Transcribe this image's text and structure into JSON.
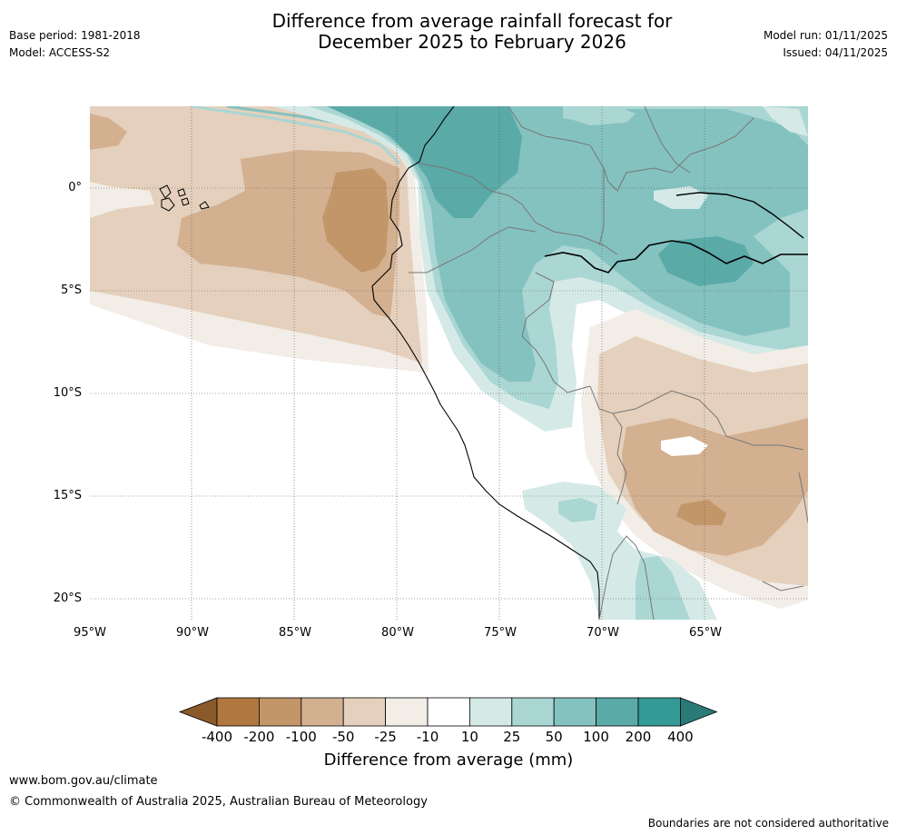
{
  "header": {
    "title_line1": "Difference from average rainfall forecast for",
    "title_line2": "December 2025 to February 2026",
    "base_period": "Base period: 1981-2018",
    "model": "Model: ACCESS-S2",
    "model_run": "Model run: 01/11/2025",
    "issued": "Issued: 04/11/2025"
  },
  "map": {
    "lat_labels": [
      "0°",
      "5°S",
      "10°S",
      "15°S",
      "20°S"
    ],
    "lon_labels": [
      "95°W",
      "90°W",
      "85°W",
      "80°W",
      "75°W",
      "70°W",
      "65°W"
    ]
  },
  "colorbar": {
    "title": "Difference from average (mm)",
    "ticks": [
      "-400",
      "-200",
      "-100",
      "-50",
      "-25",
      "-10",
      "10",
      "25",
      "50",
      "100",
      "200",
      "400"
    ],
    "colors": {
      "below_min": "#8b5a2b",
      "c1": "#b07840",
      "c2": "#c29668",
      "c3": "#d3b090",
      "c4": "#e4d0bc",
      "c5": "#f2ede6",
      "c6": "#ffffff",
      "c7": "#d5eae7",
      "c8": "#aad6d3",
      "c9": "#84c2bf",
      "c10": "#5aaaa8",
      "c11": "#339a96",
      "above_max": "#2a7b78"
    }
  },
  "footer": {
    "url": "www.bom.gov.au/climate",
    "copyright": "© Commonwealth of Australia 2025, Australian Bureau of Meteorology",
    "disclaimer": "Boundaries are not considered authoritative"
  }
}
